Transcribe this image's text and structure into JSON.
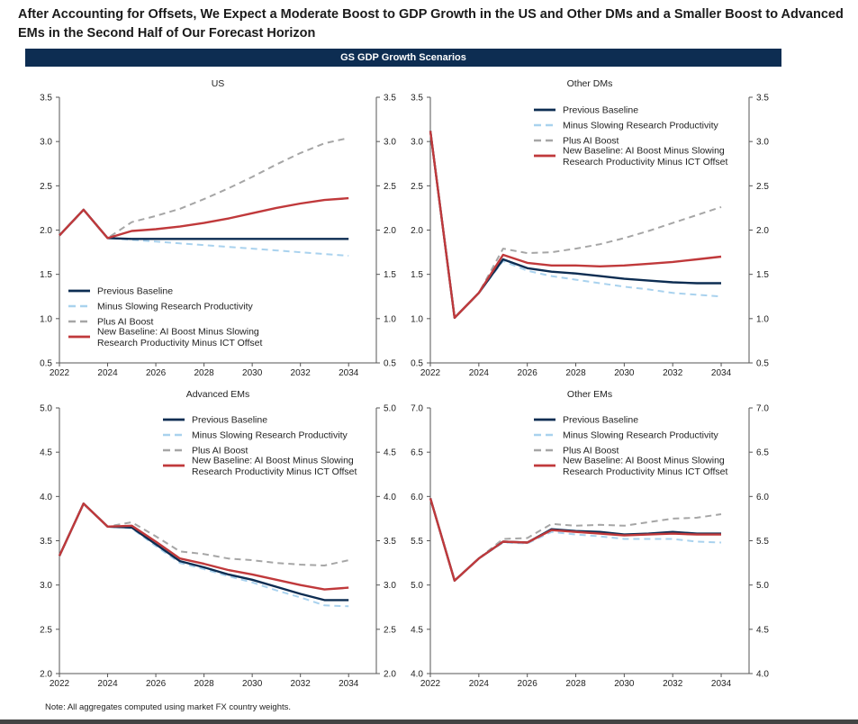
{
  "title": "After Accounting for Offsets, We Expect a Moderate Boost to GDP Growth in the US and Other DMs and a Smaller Boost to Advanced EMs in the Second Half of Our Forecast Horizon",
  "banner": "GS GDP Growth Scenarios",
  "note": "Note: All aggregates computed using market FX country weights.",
  "colors": {
    "previous": "#0d2d52",
    "minus": "#a9d2ee",
    "plus": "#a6a6a6",
    "new": "#c0393b"
  },
  "chart_data": [
    {
      "type": "line",
      "title": "US",
      "legend_position": "bottom-left",
      "x": [
        2022,
        2023,
        2024,
        2025,
        2026,
        2027,
        2028,
        2029,
        2030,
        2031,
        2032,
        2033,
        2034
      ],
      "ylim": [
        0.5,
        3.5
      ],
      "yticks": [
        "0.5",
        "1.0",
        "1.5",
        "2.0",
        "2.5",
        "3.0",
        "3.5"
      ],
      "xticks": [
        "2022",
        "2024",
        "2026",
        "2028",
        "2030",
        "2032",
        "2034"
      ],
      "series": [
        {
          "name": "Previous Baseline",
          "key": "previous",
          "values": [
            1.94,
            2.23,
            1.91,
            1.9,
            1.9,
            1.9,
            1.9,
            1.9,
            1.9,
            1.9,
            1.9,
            1.9,
            1.9
          ]
        },
        {
          "name": "Minus Slowing Research Productivity",
          "key": "minus",
          "values": [
            1.94,
            2.23,
            1.91,
            1.89,
            1.87,
            1.85,
            1.83,
            1.81,
            1.79,
            1.77,
            1.75,
            1.73,
            1.71
          ]
        },
        {
          "name": "Plus AI Boost",
          "key": "plus",
          "values": [
            1.94,
            2.23,
            1.91,
            2.09,
            2.16,
            2.24,
            2.35,
            2.47,
            2.6,
            2.74,
            2.87,
            2.98,
            3.04
          ]
        },
        {
          "name": "New Baseline: AI Boost Minus Slowing Research Productivity Minus ICT Offset",
          "name_lines": [
            "New Baseline: AI Boost Minus Slowing",
            "Research Productivity Minus ICT Offset"
          ],
          "key": "new",
          "values": [
            1.94,
            2.23,
            1.91,
            1.99,
            2.01,
            2.04,
            2.08,
            2.13,
            2.19,
            2.25,
            2.3,
            2.34,
            2.36
          ]
        }
      ]
    },
    {
      "type": "line",
      "title": "Other DMs",
      "legend_position": "top-right",
      "x": [
        2022,
        2023,
        2024,
        2025,
        2026,
        2027,
        2028,
        2029,
        2030,
        2031,
        2032,
        2033,
        2034
      ],
      "ylim": [
        0.5,
        3.5
      ],
      "yticks": [
        "0.5",
        "1.0",
        "1.5",
        "2.0",
        "2.5",
        "3.0",
        "3.5"
      ],
      "xticks": [
        "2022",
        "2024",
        "2026",
        "2028",
        "2030",
        "2032",
        "2034"
      ],
      "series": [
        {
          "name": "Previous Baseline",
          "key": "previous",
          "values": [
            3.12,
            1.01,
            1.29,
            1.67,
            1.57,
            1.53,
            1.51,
            1.48,
            1.45,
            1.43,
            1.41,
            1.4,
            1.4
          ]
        },
        {
          "name": "Minus Slowing Research Productivity",
          "key": "minus",
          "values": [
            3.12,
            1.01,
            1.29,
            1.65,
            1.54,
            1.48,
            1.44,
            1.4,
            1.36,
            1.33,
            1.29,
            1.27,
            1.25
          ]
        },
        {
          "name": "Plus AI Boost",
          "key": "plus",
          "values": [
            3.12,
            1.01,
            1.29,
            1.79,
            1.74,
            1.75,
            1.79,
            1.84,
            1.91,
            1.99,
            2.08,
            2.17,
            2.26
          ]
        },
        {
          "name": "New Baseline: AI Boost Minus Slowing Research Productivity Minus ICT Offset",
          "name_lines": [
            "New Baseline: AI Boost Minus Slowing",
            "Research Productivity Minus ICT Offset"
          ],
          "key": "new",
          "values": [
            3.12,
            1.01,
            1.29,
            1.72,
            1.63,
            1.6,
            1.6,
            1.59,
            1.6,
            1.62,
            1.64,
            1.67,
            1.7
          ]
        }
      ]
    },
    {
      "type": "line",
      "title": "Advanced EMs",
      "legend_position": "top-right",
      "x": [
        2022,
        2023,
        2024,
        2025,
        2026,
        2027,
        2028,
        2029,
        2030,
        2031,
        2032,
        2033,
        2034
      ],
      "ylim": [
        2.0,
        5.0
      ],
      "yticks": [
        "2.0",
        "2.5",
        "3.0",
        "3.5",
        "4.0",
        "4.5",
        "5.0"
      ],
      "xticks": [
        "2022",
        "2024",
        "2026",
        "2028",
        "2030",
        "2032",
        "2034"
      ],
      "series": [
        {
          "name": "Previous Baseline",
          "key": "previous",
          "values": [
            3.33,
            3.92,
            3.66,
            3.65,
            3.46,
            3.27,
            3.2,
            3.12,
            3.06,
            2.98,
            2.9,
            2.83,
            2.83
          ]
        },
        {
          "name": "Minus Slowing Research Productivity",
          "key": "minus",
          "values": [
            3.33,
            3.92,
            3.66,
            3.64,
            3.44,
            3.25,
            3.18,
            3.1,
            3.03,
            2.94,
            2.86,
            2.77,
            2.76
          ]
        },
        {
          "name": "Plus AI Boost",
          "key": "plus",
          "values": [
            3.33,
            3.92,
            3.66,
            3.71,
            3.55,
            3.38,
            3.35,
            3.3,
            3.28,
            3.25,
            3.23,
            3.22,
            3.28
          ]
        },
        {
          "name": "New Baseline: AI Boost Minus Slowing Research Productivity Minus ICT Offset",
          "name_lines": [
            "New Baseline: AI Boost Minus Slowing",
            "Research Productivity Minus ICT Offset"
          ],
          "key": "new",
          "values": [
            3.33,
            3.92,
            3.66,
            3.67,
            3.49,
            3.3,
            3.24,
            3.17,
            3.12,
            3.06,
            3.0,
            2.95,
            2.97
          ]
        }
      ]
    },
    {
      "type": "line",
      "title": "Other EMs",
      "legend_position": "top-right",
      "x": [
        2022,
        2023,
        2024,
        2025,
        2026,
        2027,
        2028,
        2029,
        2030,
        2031,
        2032,
        2033,
        2034
      ],
      "ylim": [
        4.0,
        7.0
      ],
      "yticks": [
        "4.0",
        "4.5",
        "5.0",
        "5.5",
        "6.0",
        "6.5",
        "7.0"
      ],
      "xticks": [
        "2022",
        "2024",
        "2026",
        "2028",
        "2030",
        "2032",
        "2034"
      ],
      "series": [
        {
          "name": "Previous Baseline",
          "key": "previous",
          "values": [
            5.98,
            5.05,
            5.3,
            5.49,
            5.48,
            5.63,
            5.61,
            5.6,
            5.57,
            5.58,
            5.6,
            5.58,
            5.58
          ]
        },
        {
          "name": "Minus Slowing Research Productivity",
          "key": "minus",
          "values": [
            5.98,
            5.05,
            5.3,
            5.48,
            5.47,
            5.6,
            5.57,
            5.55,
            5.52,
            5.52,
            5.52,
            5.49,
            5.48
          ]
        },
        {
          "name": "Plus AI Boost",
          "key": "plus",
          "values": [
            5.98,
            5.05,
            5.3,
            5.52,
            5.53,
            5.69,
            5.67,
            5.68,
            5.67,
            5.71,
            5.75,
            5.76,
            5.8
          ]
        },
        {
          "name": "New Baseline: AI Boost Minus Slowing Research Productivity Minus ICT Offset",
          "name_lines": [
            "New Baseline: AI Boost Minus Slowing",
            "Research Productivity Minus ICT Offset"
          ],
          "key": "new",
          "values": [
            5.98,
            5.05,
            5.3,
            5.49,
            5.48,
            5.62,
            5.6,
            5.58,
            5.56,
            5.57,
            5.58,
            5.57,
            5.57
          ]
        }
      ]
    }
  ]
}
